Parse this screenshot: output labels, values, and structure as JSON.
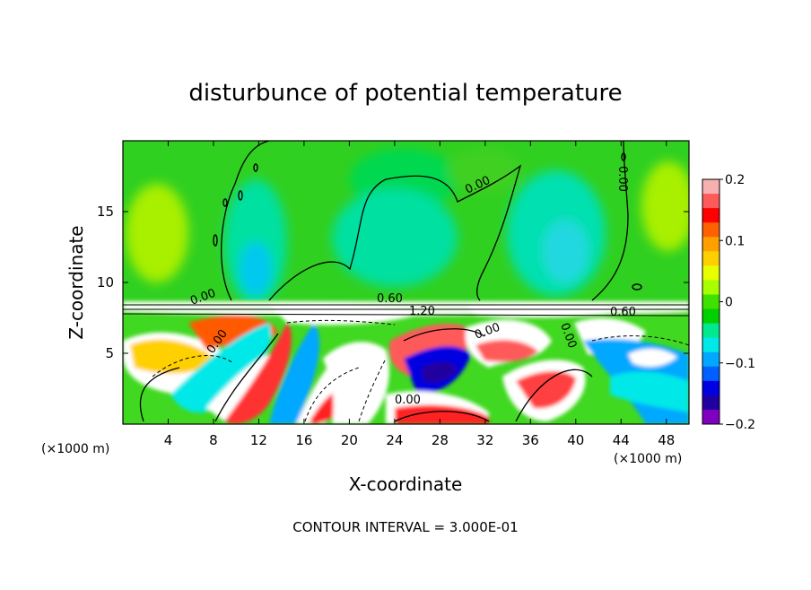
{
  "chart_data": {
    "type": "heatmap",
    "title": "disturbunce of potential temperature",
    "xlabel": "X-coordinate",
    "ylabel": "Z-coordinate",
    "x_unit_left": "(×1000 m)",
    "x_unit_right": "(×1000 m)",
    "footer": "CONTOUR INTERVAL = 3.000E-01",
    "xlim": [
      0,
      50
    ],
    "ylim": [
      0,
      20
    ],
    "x_ticks": [
      4,
      8,
      12,
      16,
      20,
      24,
      28,
      32,
      36,
      40,
      44,
      48
    ],
    "x_tick_labels": [
      "4",
      "8",
      "12",
      "16",
      "20",
      "24",
      "28",
      "32",
      "36",
      "40",
      "44",
      "48"
    ],
    "y_ticks": [
      5,
      10,
      15
    ],
    "y_tick_labels": [
      "5",
      "10",
      "15"
    ],
    "colorbar": {
      "min": -0.2,
      "max": 0.2,
      "ticks": [
        0.2,
        0.1,
        0,
        -0.1,
        -0.2
      ],
      "tick_labels": [
        "0.2",
        "0.1",
        "0",
        "−0.1",
        "−0.2"
      ],
      "colors": [
        "#f7b0b0",
        "#ff5a5a",
        "#ff0000",
        "#ff6000",
        "#ffa000",
        "#ffd000",
        "#e8ff00",
        "#a8ff00",
        "#40e000",
        "#00d000",
        "#00e890",
        "#00e8e8",
        "#00a8ff",
        "#0060ff",
        "#0000e0",
        "#2000a0",
        "#8000c0"
      ]
    },
    "contour_labels": [
      "0.00",
      "0.00",
      "0.00",
      "0.60",
      "1.20",
      "0.00",
      "0.60",
      "0.00",
      "0.00",
      "0.00"
    ],
    "contour_interval": 0.3
  }
}
